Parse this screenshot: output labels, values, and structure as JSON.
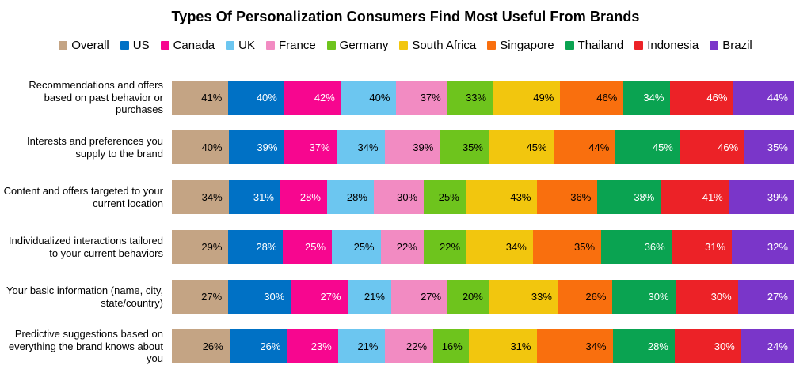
{
  "title": "Types Of Personalization Consumers Find Most Useful From Brands",
  "chart_data": {
    "type": "bar",
    "subtype": "horizontal-stacked-normalized",
    "title": "Types Of Personalization Consumers Find Most Useful From Brands",
    "unit": "%",
    "legend_position": "top-center",
    "value_labels": "inside-right",
    "categories": [
      "Recommendations and offers based on past behavior or purchases",
      "Interests and preferences you supply to the brand",
      "Content and offers targeted to your current location",
      "Individualized interactions tailored to your current behaviors",
      "Your basic information (name, city, state/country)",
      "Predictive suggestions based on everything the brand knows about you"
    ],
    "series": [
      {
        "name": "Overall",
        "color": "#C4A484",
        "label_color": "#000000",
        "values": [
          41,
          40,
          34,
          29,
          27,
          26
        ]
      },
      {
        "name": "US",
        "color": "#0071C5",
        "label_color": "#FFFFFF",
        "values": [
          40,
          39,
          31,
          28,
          30,
          26
        ]
      },
      {
        "name": "Canada",
        "color": "#F7068F",
        "label_color": "#FFFFFF",
        "values": [
          42,
          37,
          28,
          25,
          27,
          23
        ]
      },
      {
        "name": "UK",
        "color": "#6CC6F0",
        "label_color": "#000000",
        "values": [
          40,
          34,
          28,
          25,
          21,
          21
        ]
      },
      {
        "name": "France",
        "color": "#F28BC2",
        "label_color": "#000000",
        "values": [
          37,
          39,
          30,
          22,
          27,
          22
        ]
      },
      {
        "name": "Germany",
        "color": "#6EC41D",
        "label_color": "#000000",
        "values": [
          33,
          35,
          25,
          22,
          20,
          16
        ]
      },
      {
        "name": "South Africa",
        "color": "#F2C60E",
        "label_color": "#000000",
        "values": [
          49,
          45,
          43,
          34,
          33,
          31
        ]
      },
      {
        "name": "Singapore",
        "color": "#F96F0E",
        "label_color": "#000000",
        "values": [
          46,
          44,
          36,
          35,
          26,
          34
        ]
      },
      {
        "name": "Thailand",
        "color": "#0AA351",
        "label_color": "#FFFFFF",
        "values": [
          34,
          45,
          38,
          36,
          30,
          28
        ]
      },
      {
        "name": "Indonesia",
        "color": "#EC2227",
        "label_color": "#FFFFFF",
        "values": [
          46,
          46,
          41,
          31,
          30,
          30
        ]
      },
      {
        "name": "Brazil",
        "color": "#7A36C9",
        "label_color": "#FFFFFF",
        "values": [
          44,
          35,
          39,
          32,
          27,
          24
        ]
      }
    ]
  }
}
